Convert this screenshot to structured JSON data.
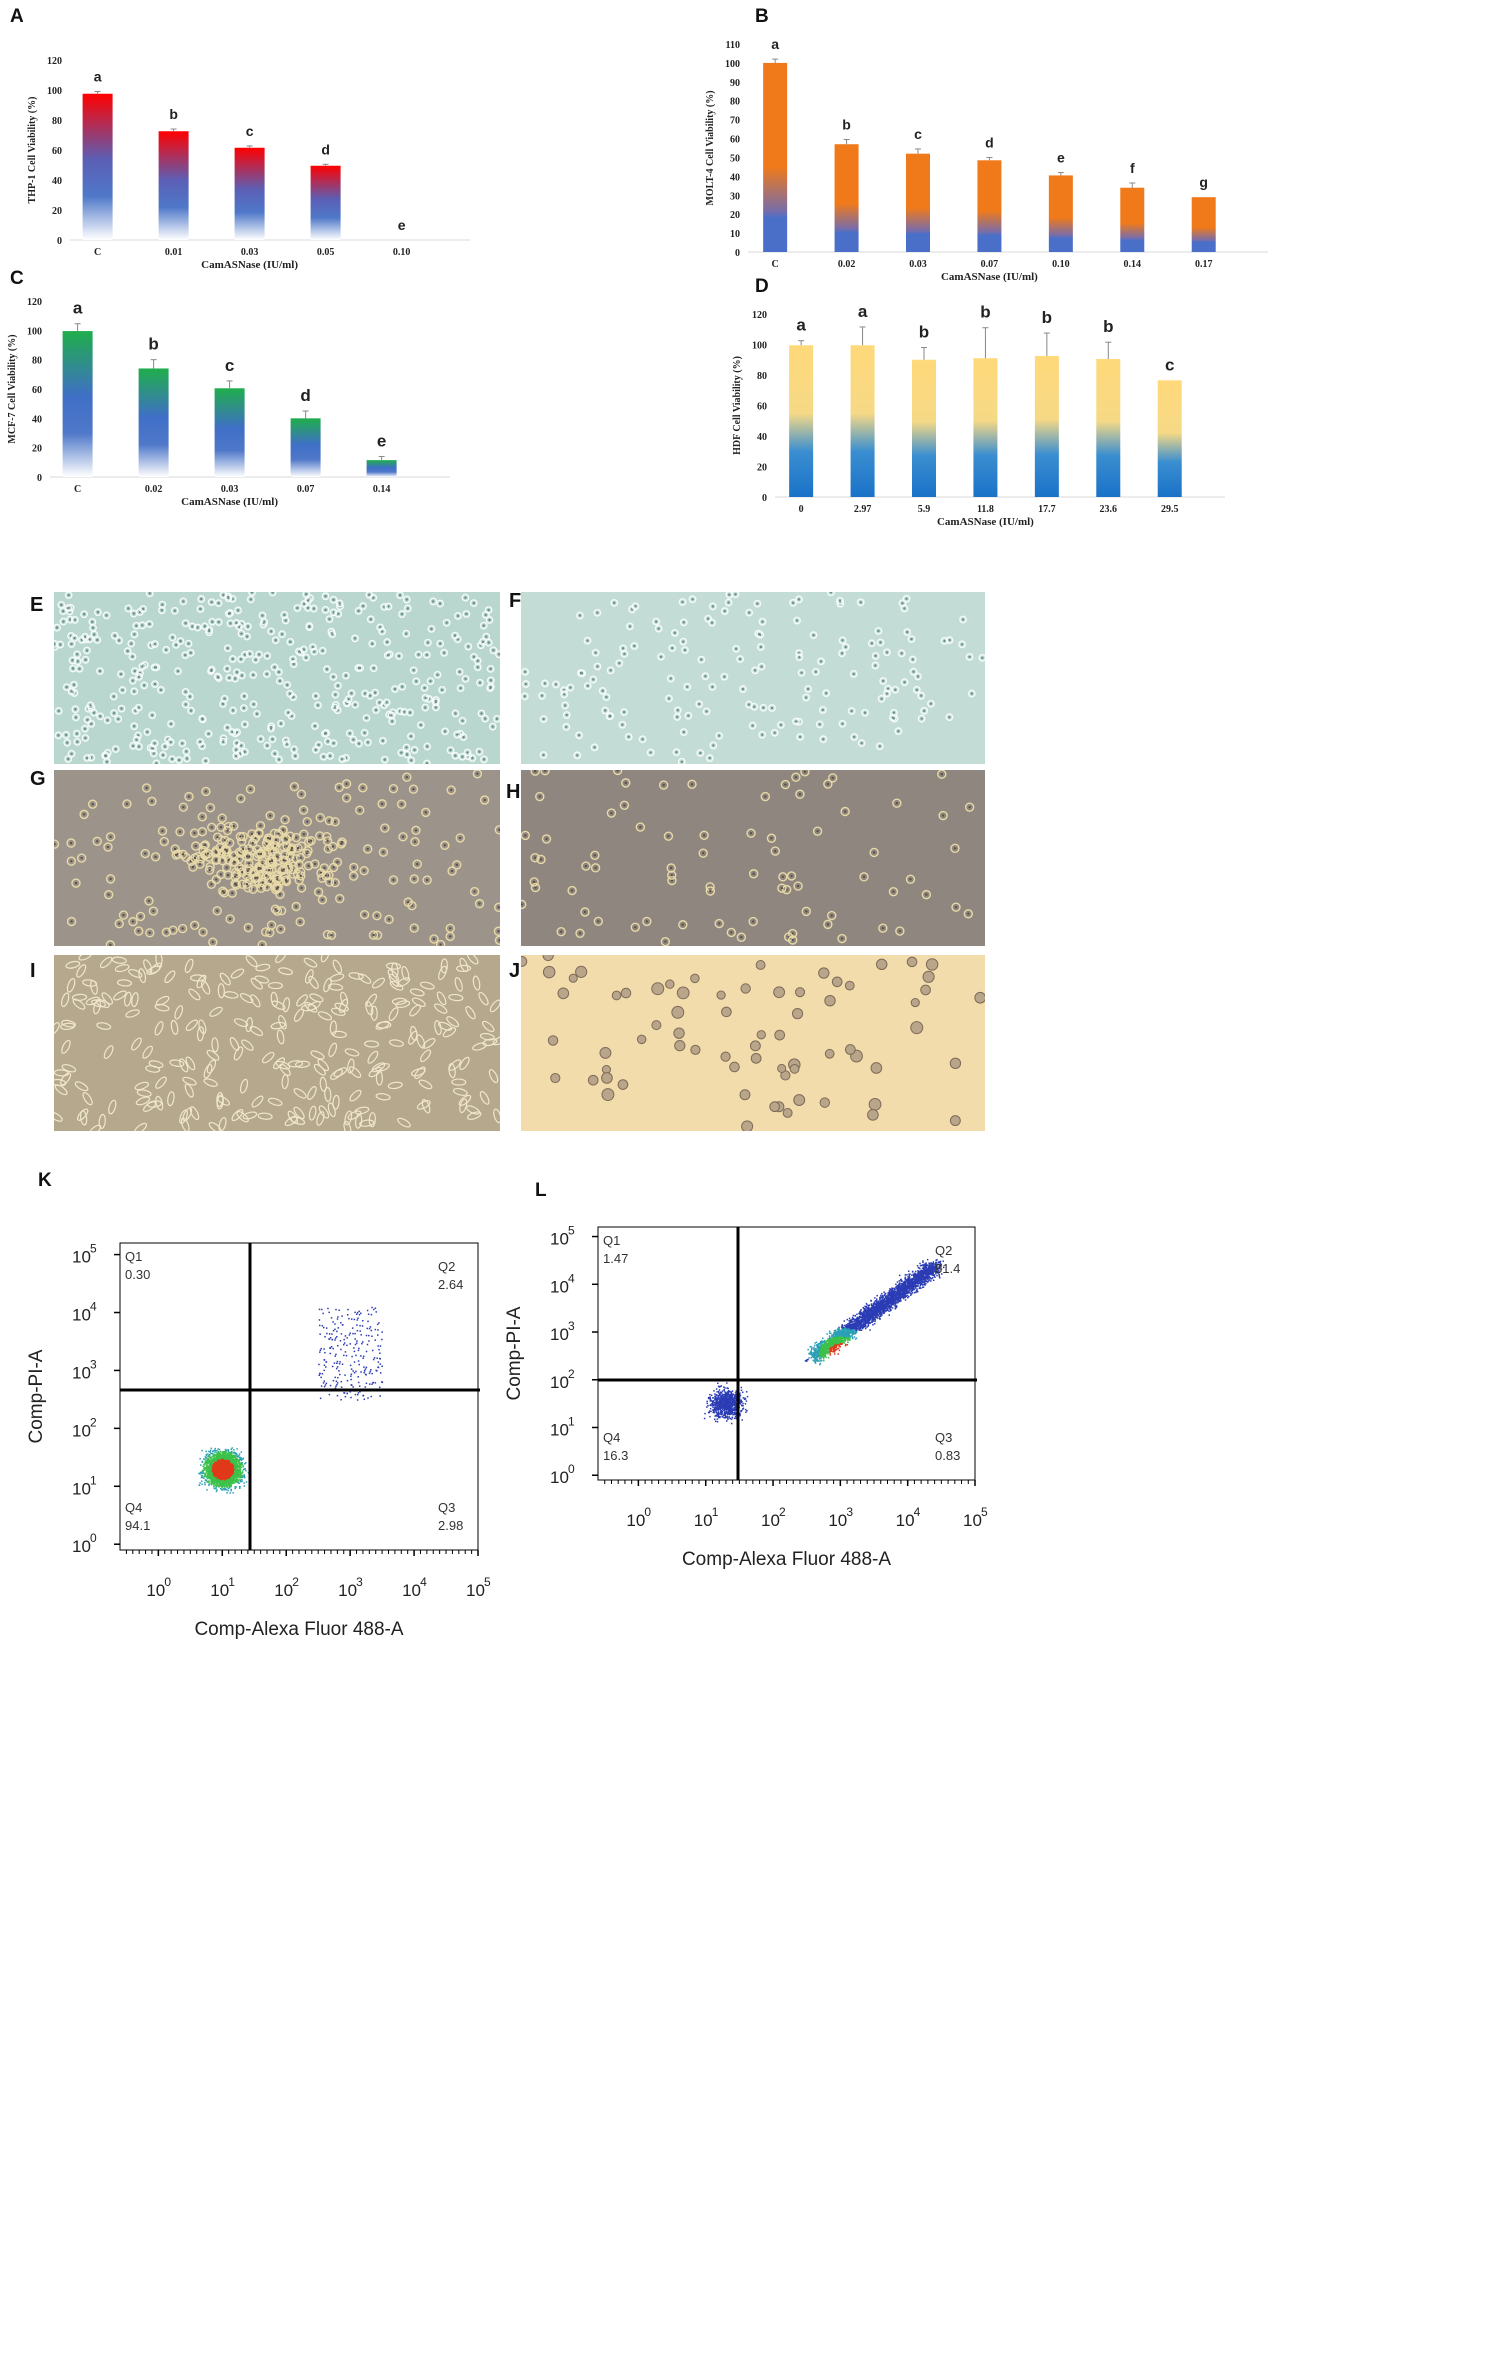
{
  "chart_data": [
    {
      "panel": "A",
      "type": "bar",
      "categories": [
        "C",
        "0.01",
        "0.03",
        "0.05",
        "0.10"
      ],
      "values": [
        97.5,
        72.5,
        61.5,
        49.5,
        0
      ],
      "errors": [
        1.5,
        1.5,
        1.2,
        1.0,
        0
      ],
      "letters": [
        "a",
        "b",
        "c",
        "d",
        "e"
      ],
      "ylabel": "THP-1 Cell Viability (%)",
      "xlabel": "CamASNase (IU/ml)",
      "ylim": [
        0,
        120
      ],
      "yticks": [
        "0",
        "20",
        "40",
        "60",
        "80",
        "100",
        "120"
      ],
      "colors": {
        "top": "#ff0000",
        "mid": "#5b5fb5",
        "bottom": "#ffffff"
      }
    },
    {
      "panel": "B",
      "type": "bar",
      "categories": [
        "C",
        "0.02",
        "0.03",
        "0.07",
        "0.10",
        "0.14",
        "0.17"
      ],
      "values": [
        100,
        57,
        52,
        48.5,
        40.5,
        34,
        29
      ],
      "errors": [
        2,
        2.5,
        2.5,
        1.5,
        1.5,
        2.5,
        0
      ],
      "letters": [
        "a",
        "b",
        "c",
        "d",
        "e",
        "f",
        "g"
      ],
      "ylabel": "MOLT-4 Cell Viability (%)",
      "xlabel": "CamASNase (IU/ml)",
      "ylim": [
        0,
        110
      ],
      "yticks": [
        "0",
        "10",
        "20",
        "30",
        "40",
        "50",
        "60",
        "70",
        "80",
        "90",
        "100",
        "110"
      ],
      "colors": {
        "top": "#f07a1a",
        "mid": "#f07a1a",
        "bottom": "#4a6fc9"
      }
    },
    {
      "panel": "C",
      "type": "bar",
      "categories": [
        "C",
        "0.02",
        "0.03",
        "0.07",
        "0.14"
      ],
      "values": [
        99.5,
        74,
        60.5,
        40,
        11.5
      ],
      "errors": [
        5,
        6,
        5,
        5,
        2.5
      ],
      "letters": [
        "a",
        "b",
        "c",
        "d",
        "e"
      ],
      "ylabel": "MCF-7 Cell Viability (%)",
      "xlabel": "CamASNase (IU/ml)",
      "ylim": [
        0,
        120
      ],
      "yticks": [
        "0",
        "20",
        "40",
        "60",
        "80",
        "100",
        "120"
      ],
      "colors": {
        "top": "#1fae4b",
        "mid": "#3f6fc7",
        "bottom": "#ffffff"
      }
    },
    {
      "panel": "D",
      "type": "bar",
      "categories": [
        "0",
        "2.97",
        "5.9",
        "11.8",
        "17.7",
        "23.6",
        "29.5"
      ],
      "values": [
        99.5,
        99.5,
        90,
        91,
        92.5,
        90.5,
        76.5
      ],
      "errors": [
        3,
        12,
        8,
        20,
        15,
        11,
        0
      ],
      "letters": [
        "a",
        "a",
        "b",
        "b",
        "b",
        "b",
        "c"
      ],
      "ylabel": "HDF Cell Viability (%)",
      "xlabel": "CamASNase (IU/ml)",
      "ylim": [
        0,
        120
      ],
      "yticks": [
        "0",
        "20",
        "40",
        "60",
        "80",
        "100",
        "120"
      ],
      "colors": {
        "top": "#ffd97a",
        "mid": "#f6d986",
        "bottom": "#1a72c8"
      }
    },
    {
      "panel": "K",
      "type": "scatter",
      "xlabel": "Comp-Alexa Fluor 488-A",
      "ylabel": "Comp-PI-A",
      "quadrants": {
        "Q1": "0.30",
        "Q2": "2.64",
        "Q3": "2.98",
        "Q4": "94.1"
      },
      "cluster": {
        "x_log": 1.0,
        "y_log": 1.3
      }
    },
    {
      "panel": "L",
      "type": "scatter",
      "xlabel": "Comp-Alexa Fluor 488-A",
      "ylabel": "Comp-PI-A",
      "quadrants": {
        "Q1": "1.47",
        "Q2": "81.4",
        "Q3": "0.83",
        "Q4": "16.3"
      },
      "cluster": {
        "x_log": 3.0,
        "y_log": 2.6
      }
    }
  ],
  "photos": [
    {
      "panel": "E",
      "bg": "#b9d6cf"
    },
    {
      "panel": "F",
      "bg": "#c3dcd6"
    },
    {
      "panel": "G",
      "bg": "#9c948a"
    },
    {
      "panel": "H",
      "bg": "#8f877f"
    },
    {
      "panel": "I",
      "bg": "#b5a88c"
    },
    {
      "panel": "J",
      "bg": "#f3dcab"
    }
  ],
  "flow_ticks": {
    "x": [
      "10",
      "10",
      "10",
      "10",
      "10",
      "10"
    ],
    "x_exp": [
      "0",
      "1",
      "2",
      "3",
      "4",
      "5"
    ],
    "y": [
      "10",
      "10",
      "10",
      "10",
      "10",
      "10"
    ],
    "y_exp": [
      "0",
      "1",
      "2",
      "3",
      "4",
      "5"
    ]
  }
}
